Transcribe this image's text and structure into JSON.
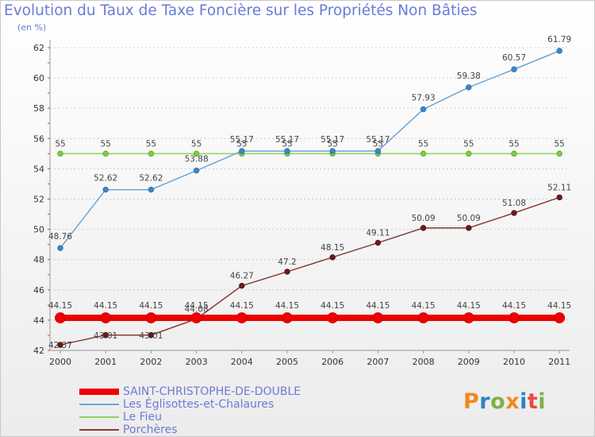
{
  "title": "Evolution du Taux de Taxe Foncière sur les Propriétés Non Bâties",
  "unit_label": "(en %)",
  "logo": {
    "text": "Proxiti",
    "letters": [
      "P",
      "r",
      "o",
      "x",
      "i",
      "t",
      "i"
    ],
    "colors": [
      "#f08a1a",
      "#2a83c5",
      "#7cb342",
      "#f08a1a",
      "#2a83c5",
      "#e84c3d",
      "#7cb342"
    ]
  },
  "chart_data": {
    "type": "line",
    "title": "Evolution du Taux de Taxe Foncière sur les Propriétés Non Bâties",
    "ylabel": "(en %)",
    "xlabel": "",
    "ylim": [
      42,
      62
    ],
    "yticks": [
      "42",
      "44",
      "46",
      "48",
      "50",
      "52",
      "54",
      "56",
      "58",
      "60",
      "62"
    ],
    "x": [
      "2000",
      "2001",
      "2002",
      "2003",
      "2004",
      "2005",
      "2006",
      "2007",
      "2008",
      "2009",
      "2010",
      "2011"
    ],
    "grid": "dashed horizontal",
    "legend_position": "bottom-left",
    "series": [
      {
        "name": "SAINT-CHRISTOPHE-DE-DOUBLE",
        "color": "#ee0000",
        "values": [
          44.15,
          44.15,
          44.15,
          44.15,
          44.15,
          44.15,
          44.15,
          44.15,
          44.15,
          44.15,
          44.15,
          44.15
        ],
        "labels": [
          "44.15",
          "44.15",
          "44.15",
          "44.15",
          "44.15",
          "44.15",
          "44.15",
          "44.15",
          "44.15",
          "44.15",
          "44.15",
          "44.15"
        ]
      },
      {
        "name": "Les Églisottes-et-Chalaures",
        "color": "#6aa6d8",
        "values": [
          48.76,
          52.62,
          52.62,
          53.88,
          55.17,
          55.17,
          55.17,
          55.17,
          57.93,
          59.38,
          60.57,
          61.79
        ],
        "labels": [
          "48.76",
          "52.62",
          "52.62",
          "53.88",
          "55.17",
          "55.17",
          "55.17",
          "55.17",
          "57.93",
          "59.38",
          "60.57",
          "61.79"
        ]
      },
      {
        "name": "Le Fieu",
        "color": "#8ed35a",
        "values": [
          55,
          55,
          55,
          55,
          55,
          55,
          55,
          55,
          55,
          55,
          55,
          55
        ],
        "labels": [
          "55",
          "55",
          "55",
          "55",
          "55",
          "55",
          "55",
          "55",
          "55",
          "55",
          "55",
          "55"
        ]
      },
      {
        "name": "Porchères",
        "color": "#8a3a3a",
        "values": [
          42.37,
          43.01,
          43.01,
          44.08,
          46.27,
          47.2,
          48.15,
          49.11,
          50.09,
          50.09,
          51.08,
          52.11
        ],
        "labels": [
          "42.37",
          "43.01",
          "43.01",
          "44.08",
          "46.27",
          "47.2",
          "48.15",
          "49.11",
          "50.09",
          "50.09",
          "51.08",
          "52.11"
        ]
      }
    ]
  }
}
